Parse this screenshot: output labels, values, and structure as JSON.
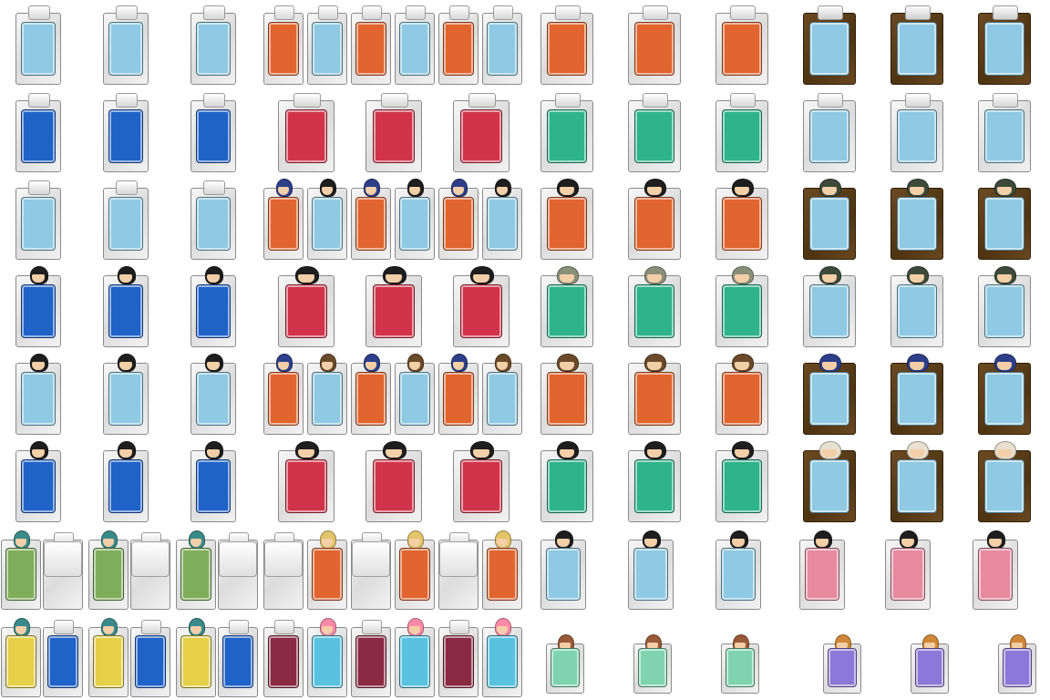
{
  "sheet": {
    "background": "#ffffff",
    "theme": "futon bed sprite sheet (top-down RPG tiles)",
    "palettes": {
      "light-blue": "#8fc9e3",
      "orange": "#e0652e",
      "blue": "#1f62c8",
      "red": "#d1344a",
      "teal-patch": "#2fb38a",
      "brown-frame": "#5a3a14",
      "green": "#7fae5a",
      "yellow": "#e6d04a",
      "maroon": "#8a2a45",
      "cyan": "#59c2e0",
      "pink": "#e78aa0",
      "mint": "#7fd3b0",
      "purple": "#8c78d8"
    },
    "hair": {
      "none": "",
      "black": "#1e1e1e",
      "navy": "#2d3e8a",
      "brown": "#6a4a2a",
      "ash": "#8a8f7a",
      "dark-green": "#3d4a3a",
      "blonde": "#e3c46a",
      "teal": "#3a8a8a",
      "pink": "#ff8aa8",
      "auburn": "#9a5a38",
      "orange": "#d08838",
      "white": "#e8e0d0"
    }
  }
}
